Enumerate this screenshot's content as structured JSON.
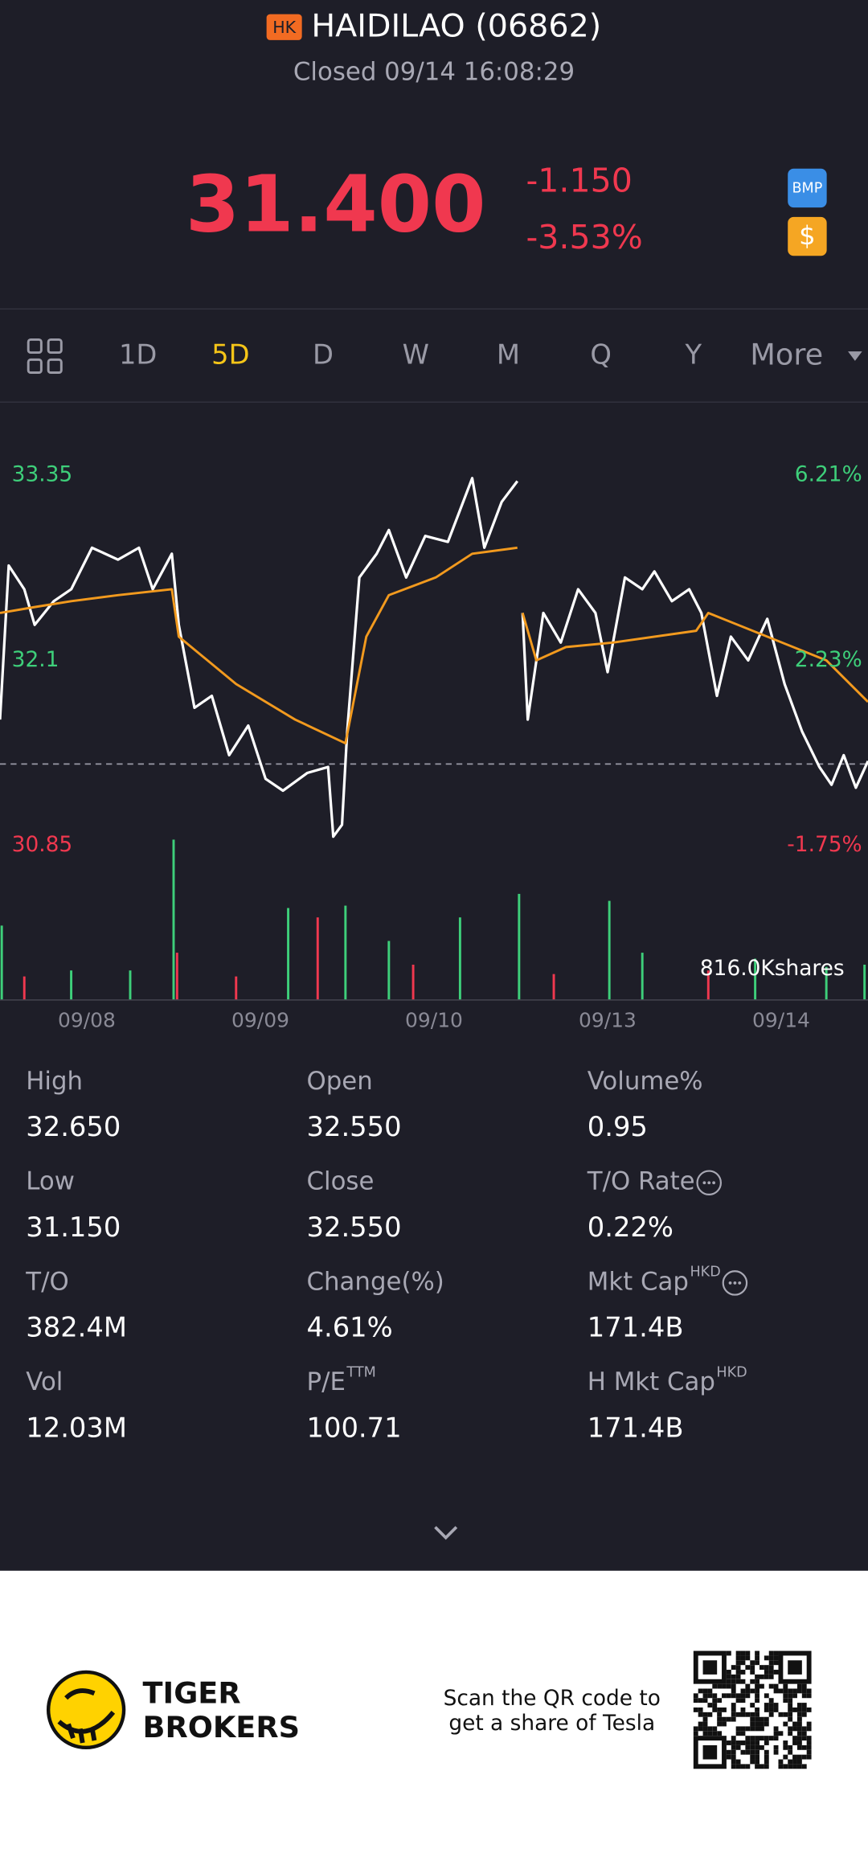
{
  "header": {
    "badge": "HK",
    "name": "HAIDILAO (06862)",
    "status": "Closed 09/14 16:08:29",
    "price": "31.400",
    "change": "-1.150",
    "change_pct": "-3.53%",
    "icon_bmp": "BMP",
    "icon_cash": "$"
  },
  "tabs": [
    "1D",
    "5D",
    "D",
    "W",
    "M",
    "Q",
    "Y",
    "More"
  ],
  "active_tab": 1,
  "chart_data": [
    {
      "type": "line",
      "ylim": [
        30.85,
        33.35
      ],
      "yticks": [
        33.35,
        32.1,
        30.85
      ],
      "y2lim": [
        -1.75,
        6.21
      ],
      "y2ticks": [
        {
          "value": 6.21,
          "label": "6.21%"
        },
        {
          "value": 2.23,
          "label": "2.23%"
        },
        {
          "value": -1.75,
          "label": "-1.75%"
        }
      ],
      "xlim": [
        0,
        5
      ],
      "xticks": [
        {
          "value": 0.5,
          "label": "09/08"
        },
        {
          "value": 1.5,
          "label": "09/09"
        },
        {
          "value": 2.5,
          "label": "09/10"
        },
        {
          "value": 3.5,
          "label": "09/13"
        },
        {
          "value": 4.5,
          "label": "09/14"
        }
      ],
      "ref_line": 31.4,
      "up_color": "#3ecf7a",
      "down_color": "#f0384f",
      "series": [
        {
          "color": "#ffffff",
          "x": [
            0,
            0.05,
            0.14,
            0.2,
            0.31,
            0.41,
            0.53,
            0.68,
            0.8,
            0.88,
            0.99,
            1.03,
            1.12,
            1.22,
            1.32,
            1.43,
            1.53,
            1.63,
            1.77,
            1.89,
            1.92,
            1.97,
            2.0,
            2.07,
            2.17,
            2.24,
            2.34,
            2.45,
            2.58,
            2.72,
            2.79,
            2.89,
            2.98,
            2.99,
            3.01,
            3.04,
            3.13,
            3.23,
            3.33,
            3.43,
            3.5,
            3.6,
            3.7,
            3.77,
            3.87,
            3.97,
            4.04,
            4.13,
            4.21,
            4.31,
            4.42,
            4.52,
            4.62,
            4.72,
            4.79,
            4.86,
            4.93,
            5.0
          ],
          "values": [
            31.7,
            32.74,
            32.58,
            32.34,
            32.5,
            32.58,
            32.86,
            32.78,
            32.86,
            32.58,
            32.82,
            32.34,
            31.78,
            31.86,
            31.46,
            31.66,
            31.3,
            31.22,
            31.34,
            31.38,
            30.91,
            30.99,
            31.62,
            32.66,
            32.82,
            32.98,
            32.66,
            32.94,
            32.9,
            33.33,
            32.86,
            33.17,
            33.31,
            null,
            32.42,
            31.7,
            32.42,
            32.22,
            32.58,
            32.42,
            32.02,
            32.66,
            32.58,
            32.7,
            32.5,
            32.58,
            32.42,
            31.86,
            32.26,
            32.1,
            32.38,
            31.94,
            31.62,
            31.38,
            31.26,
            31.46,
            31.24,
            31.42
          ]
        },
        {
          "color": "#f29a1e",
          "x": [
            0,
            0.2,
            0.41,
            0.68,
            0.99,
            1.03,
            1.36,
            1.7,
            1.99,
            2.11,
            2.24,
            2.51,
            2.72,
            2.98,
            2.99,
            3.01,
            3.09,
            3.26,
            3.53,
            4.01,
            4.08,
            4.42,
            4.76,
            5.0
          ],
          "values": [
            32.42,
            32.46,
            32.5,
            32.54,
            32.58,
            32.26,
            31.94,
            31.7,
            31.54,
            32.26,
            32.54,
            32.66,
            32.82,
            32.86,
            null,
            32.42,
            32.1,
            32.19,
            32.22,
            32.3,
            32.42,
            32.26,
            32.1,
            31.82
          ]
        }
      ]
    },
    {
      "type": "bar",
      "ylim": [
        0,
        816.0
      ],
      "xlim": [
        0,
        5
      ],
      "max_label": "816.0Kshares",
      "series": [
        {
          "color": "#3ecf7a",
          "x": [
            0.01,
            0.41,
            0.75,
            1.0,
            1.66,
            1.99,
            2.24,
            2.65,
            2.99,
            3.51,
            3.7,
            4.35,
            4.76,
            4.98
          ],
          "values": [
            373,
            148,
            148,
            804,
            461,
            473,
            296,
            414,
            532,
            497,
            237,
            207,
            166,
            177
          ]
        },
        {
          "color": "#f0384f",
          "x": [
            0.14,
            1.02,
            1.36,
            1.83,
            2.38,
            3.19,
            4.08
          ],
          "values": [
            118,
            237,
            118,
            414,
            177,
            130,
            148
          ]
        }
      ]
    }
  ],
  "stats": [
    [
      {
        "label": "High",
        "value": "32.650"
      },
      {
        "label": "Open",
        "value": "32.550"
      },
      {
        "label": "Volume%",
        "value": "0.95"
      }
    ],
    [
      {
        "label": "Low",
        "value": "31.150"
      },
      {
        "label": "Close",
        "value": "32.550"
      },
      {
        "label": "T/O Rate",
        "value": "0.22%",
        "more": true
      }
    ],
    [
      {
        "label": "T/O",
        "value": "382.4M"
      },
      {
        "label": "Change(%)",
        "value": "4.61%"
      },
      {
        "label": "Mkt Cap",
        "sup": "HKD",
        "value": "171.4B",
        "more": true
      }
    ],
    [
      {
        "label": "Vol",
        "value": "12.03M"
      },
      {
        "label": "P/E",
        "sup": "TTM",
        "value": "100.71"
      },
      {
        "label": "H Mkt Cap",
        "sup": "HKD",
        "value": "171.4B"
      }
    ]
  ],
  "footer": {
    "brand1": "TIGER",
    "brand2": "BROKERS",
    "line1": "Scan the QR code to",
    "line2": "get a share of Tesla"
  }
}
